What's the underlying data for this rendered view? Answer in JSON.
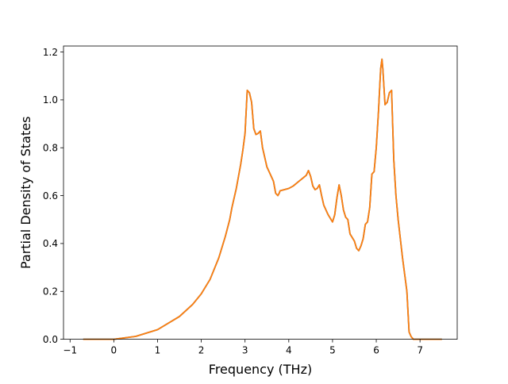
{
  "chart_data": {
    "type": "line",
    "title": "",
    "xlabel": "Frequency (THz)",
    "ylabel": "Partial Density of States",
    "xlim": [
      -1.15,
      7.85
    ],
    "ylim": [
      0.0,
      1.225
    ],
    "xticks": [
      -1,
      0,
      1,
      2,
      3,
      4,
      5,
      6,
      7
    ],
    "xtick_labels": [
      "−1",
      "0",
      "1",
      "2",
      "3",
      "4",
      "5",
      "6",
      "7"
    ],
    "yticks": [
      0.0,
      0.2,
      0.4,
      0.6,
      0.8,
      1.0,
      1.2
    ],
    "ytick_labels": [
      "0.0",
      "0.2",
      "0.4",
      "0.6",
      "0.8",
      "1.0",
      "1.2"
    ],
    "grid": false,
    "legend": "none",
    "series": [
      {
        "color": "#1f77b4",
        "x": [
          -0.7,
          0.0,
          0.5,
          1.0,
          1.5,
          1.8,
          2.0,
          2.2,
          2.4,
          2.55,
          2.65,
          2.7,
          2.8,
          2.9,
          2.95,
          3.0,
          3.05,
          3.1,
          3.15,
          3.2,
          3.25,
          3.3,
          3.35,
          3.4,
          3.5,
          3.6,
          3.65,
          3.7,
          3.75,
          3.78,
          3.8,
          3.9,
          4.0,
          4.1,
          4.2,
          4.3,
          4.4,
          4.45,
          4.5,
          4.55,
          4.6,
          4.65,
          4.7,
          4.75,
          4.8,
          4.9,
          5.0,
          5.05,
          5.1,
          5.15,
          5.2,
          5.25,
          5.3,
          5.35,
          5.4,
          5.5,
          5.55,
          5.6,
          5.65,
          5.7,
          5.75,
          5.8,
          5.85,
          5.9,
          5.95,
          6.0,
          6.05,
          6.1,
          6.13,
          6.15,
          6.2,
          6.25,
          6.3,
          6.35,
          6.4,
          6.45,
          6.5,
          6.6,
          6.7,
          6.75,
          6.8,
          6.85,
          7.0,
          7.5
        ],
        "y": [
          0.0,
          0.0,
          0.012,
          0.04,
          0.095,
          0.145,
          0.19,
          0.25,
          0.34,
          0.43,
          0.5,
          0.55,
          0.63,
          0.73,
          0.79,
          0.86,
          1.04,
          1.03,
          0.99,
          0.88,
          0.855,
          0.86,
          0.87,
          0.8,
          0.72,
          0.68,
          0.66,
          0.61,
          0.6,
          0.61,
          0.62,
          0.625,
          0.63,
          0.64,
          0.655,
          0.67,
          0.685,
          0.705,
          0.68,
          0.64,
          0.625,
          0.63,
          0.645,
          0.6,
          0.56,
          0.52,
          0.49,
          0.52,
          0.59,
          0.645,
          0.6,
          0.54,
          0.51,
          0.5,
          0.44,
          0.41,
          0.38,
          0.37,
          0.39,
          0.42,
          0.48,
          0.49,
          0.55,
          0.69,
          0.7,
          0.8,
          0.95,
          1.13,
          1.17,
          1.13,
          0.98,
          0.99,
          1.03,
          1.04,
          0.75,
          0.6,
          0.5,
          0.34,
          0.2,
          0.03,
          0.01,
          0.0,
          0.0,
          0.0
        ]
      },
      {
        "color": "#ff7f0e",
        "x": [
          -0.7,
          0.0,
          0.5,
          1.0,
          1.5,
          1.8,
          2.0,
          2.2,
          2.4,
          2.55,
          2.65,
          2.7,
          2.8,
          2.9,
          2.95,
          3.0,
          3.05,
          3.1,
          3.15,
          3.2,
          3.25,
          3.3,
          3.35,
          3.4,
          3.5,
          3.6,
          3.65,
          3.7,
          3.75,
          3.78,
          3.8,
          3.9,
          4.0,
          4.1,
          4.2,
          4.3,
          4.4,
          4.45,
          4.5,
          4.55,
          4.6,
          4.65,
          4.7,
          4.75,
          4.8,
          4.9,
          5.0,
          5.05,
          5.1,
          5.15,
          5.2,
          5.25,
          5.3,
          5.35,
          5.4,
          5.5,
          5.55,
          5.6,
          5.65,
          5.7,
          5.75,
          5.8,
          5.85,
          5.9,
          5.95,
          6.0,
          6.05,
          6.1,
          6.13,
          6.15,
          6.2,
          6.25,
          6.3,
          6.35,
          6.4,
          6.45,
          6.5,
          6.6,
          6.7,
          6.75,
          6.8,
          6.85,
          7.0,
          7.5
        ],
        "y": [
          0.0,
          0.0,
          0.012,
          0.04,
          0.095,
          0.145,
          0.19,
          0.25,
          0.34,
          0.43,
          0.5,
          0.55,
          0.63,
          0.73,
          0.79,
          0.86,
          1.04,
          1.03,
          0.99,
          0.88,
          0.855,
          0.86,
          0.87,
          0.8,
          0.72,
          0.68,
          0.66,
          0.61,
          0.6,
          0.61,
          0.62,
          0.625,
          0.63,
          0.64,
          0.655,
          0.67,
          0.685,
          0.705,
          0.68,
          0.64,
          0.625,
          0.63,
          0.645,
          0.6,
          0.56,
          0.52,
          0.49,
          0.52,
          0.59,
          0.645,
          0.6,
          0.54,
          0.51,
          0.5,
          0.44,
          0.41,
          0.38,
          0.37,
          0.39,
          0.42,
          0.48,
          0.49,
          0.55,
          0.69,
          0.7,
          0.8,
          0.95,
          1.13,
          1.17,
          1.13,
          0.98,
          0.99,
          1.03,
          1.04,
          0.75,
          0.6,
          0.5,
          0.34,
          0.2,
          0.03,
          0.01,
          0.0,
          0.0,
          0.0
        ]
      }
    ]
  }
}
